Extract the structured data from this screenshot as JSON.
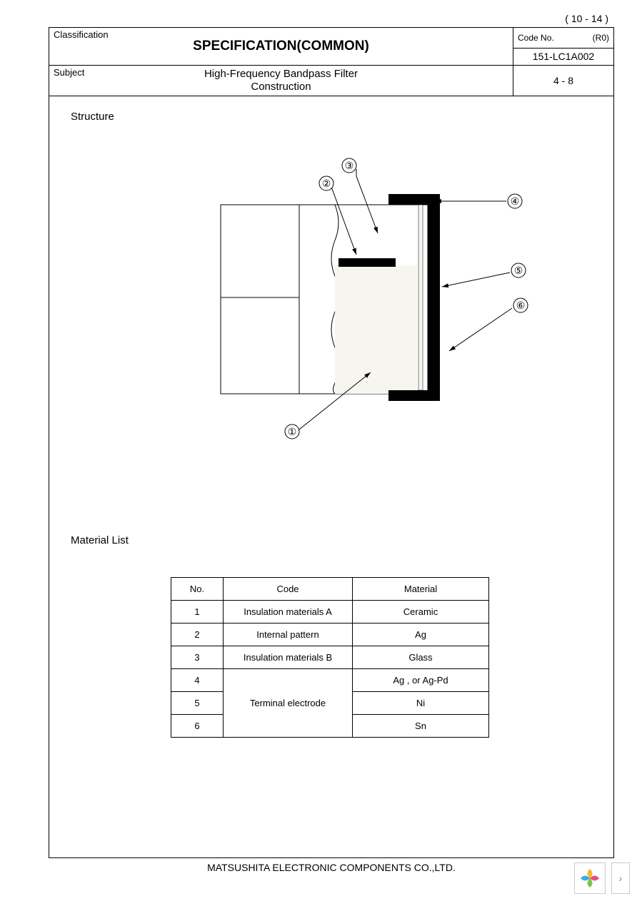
{
  "page_indicator": "( 10 - 14 )",
  "header": {
    "classification_label": "Classification",
    "title": "SPECIFICATION(COMMON)",
    "code_no_label": "Code No.",
    "revision": "(R0)",
    "code_no": "151-LC1A002",
    "subject_label": "Subject",
    "subject": "High-Frequency Bandpass Filter\nConstruction",
    "page_of": "4 - 8"
  },
  "section1": "Structure",
  "section2": "Material List",
  "diagram": {
    "callouts": [
      "①",
      "②",
      "③",
      "④",
      "⑤",
      "⑥"
    ],
    "main_stroke": "#000000",
    "fill_dot": "#f2f0ec"
  },
  "table": {
    "headers": [
      "No.",
      "Code",
      "Material"
    ],
    "rows": [
      {
        "no": "1",
        "code": "Insulation materials A",
        "material": "Ceramic",
        "code_rowspan": 1
      },
      {
        "no": "2",
        "code": "Internal pattern",
        "material": "Ag",
        "code_rowspan": 1
      },
      {
        "no": "3",
        "code": "Insulation materials B",
        "material": "Glass",
        "code_rowspan": 1
      },
      {
        "no": "4",
        "code": "Terminal electrode",
        "material": "Ag , or Ag-Pd",
        "code_rowspan": 3
      },
      {
        "no": "5",
        "code": "",
        "material": "Ni",
        "code_rowspan": 0
      },
      {
        "no": "6",
        "code": "",
        "material": "Sn",
        "code_rowspan": 0
      }
    ]
  },
  "footer": "MATSUSHITA ELECTRONIC COMPONENTS CO.,LTD.",
  "widget": {
    "petals": [
      "#f5b72a",
      "#e84c88",
      "#7fc24b",
      "#3fa9e0"
    ],
    "chevron": "›"
  }
}
